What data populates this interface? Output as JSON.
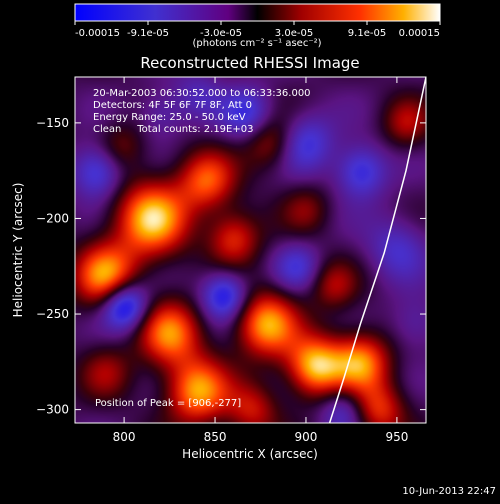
{
  "chart_data": {
    "type": "heatmap",
    "title": "Reconstructed RHESSI Image",
    "xlabel": "Heliocentric X (arcsec)",
    "ylabel": "Heliocentric Y (arcsec)",
    "xlim": [
      773,
      966
    ],
    "ylim": [
      -307,
      -126
    ],
    "x_ticks": [
      800,
      850,
      900,
      950
    ],
    "y_ticks": [
      -150,
      -200,
      -250,
      -300
    ],
    "colorbar": {
      "ticks": [
        "-0.00015",
        "-9.1e-05",
        "-3.0e-05",
        "3.0e-05",
        "9.1e-05",
        "0.00015"
      ],
      "unit_label": "(photons cm⁻² s⁻¹ asec⁻²)",
      "range": [
        -0.00015,
        0.00015
      ]
    },
    "annotations": [
      "20-Mar-2003 06:30:52.000 to 06:33:36.000",
      "Detectors: 4F 5F 6F 7F 8F, Att 0",
      "Energy Range: 25.0 - 50.0 keV",
      "Clean     Total counts: 2.19E+03"
    ],
    "peak_label": "Position of Peak = [906,-277]",
    "peak": [
      906,
      -277
    ],
    "blobs": [
      [
        815,
        -200,
        1.0,
        14
      ],
      [
        790,
        -230,
        0.9,
        12
      ],
      [
        845,
        -180,
        0.7,
        11
      ],
      [
        860,
        -210,
        0.6,
        10
      ],
      [
        825,
        -260,
        0.8,
        12
      ],
      [
        840,
        -290,
        0.9,
        12
      ],
      [
        878,
        -255,
        0.9,
        12
      ],
      [
        905,
        -277,
        1.0,
        11
      ],
      [
        930,
        -275,
        0.85,
        11
      ],
      [
        940,
        -300,
        0.6,
        10
      ],
      [
        880,
        -160,
        0.45,
        10
      ],
      [
        900,
        -195,
        0.3,
        9
      ],
      [
        955,
        -150,
        0.4,
        9
      ],
      [
        790,
        -280,
        0.35,
        10
      ],
      [
        870,
        -300,
        0.5,
        10
      ],
      [
        915,
        -235,
        0.4,
        9
      ],
      [
        798,
        -162,
        0.3,
        9
      ],
      [
        800,
        -245,
        -0.9,
        9
      ],
      [
        785,
        -175,
        -0.6,
        10
      ],
      [
        855,
        -240,
        -0.7,
        9
      ],
      [
        868,
        -145,
        -0.5,
        10
      ],
      [
        900,
        -160,
        -0.5,
        11
      ],
      [
        930,
        -175,
        -0.6,
        10
      ],
      [
        950,
        -215,
        -0.4,
        12
      ],
      [
        840,
        -135,
        -0.3,
        10
      ],
      [
        895,
        -225,
        -0.4,
        9
      ],
      [
        920,
        -300,
        -0.4,
        9
      ],
      [
        960,
        -255,
        -0.3,
        10
      ],
      [
        820,
        -145,
        -0.3,
        9
      ]
    ],
    "limb_curve": [
      [
        966,
        -126
      ],
      [
        955,
        -175
      ],
      [
        943,
        -218
      ],
      [
        930,
        -255
      ],
      [
        921,
        -283
      ],
      [
        913,
        -307
      ]
    ]
  }
}
